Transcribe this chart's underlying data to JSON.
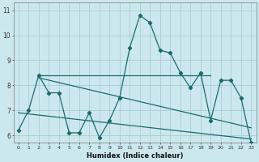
{
  "xlabel": "Humidex (Indice chaleur)",
  "ylabel": "",
  "bg_color": "#cce8ee",
  "grid_color": "#aaccd4",
  "line_color": "#1a6b6b",
  "x_ticks": [
    0,
    1,
    2,
    3,
    4,
    5,
    6,
    7,
    8,
    9,
    10,
    11,
    12,
    13,
    14,
    15,
    16,
    17,
    18,
    19,
    20,
    21,
    22,
    23
  ],
  "ylim": [
    5.7,
    11.3
  ],
  "xlim": [
    -0.5,
    23.5
  ],
  "yticks": [
    6,
    7,
    8,
    9,
    10,
    11
  ],
  "series1_x": [
    0,
    1,
    2,
    3,
    4,
    5,
    6,
    7,
    8,
    9,
    10,
    11,
    12,
    13,
    14,
    15,
    16,
    17,
    18,
    19,
    20,
    21,
    22,
    23
  ],
  "series1_y": [
    6.2,
    7.0,
    8.4,
    7.7,
    7.7,
    6.1,
    6.1,
    6.9,
    5.9,
    6.6,
    7.5,
    9.5,
    10.8,
    10.5,
    9.4,
    9.3,
    8.5,
    7.9,
    8.5,
    6.6,
    8.2,
    8.2,
    7.5,
    5.7
  ],
  "series2_x": [
    2,
    19
  ],
  "series2_y": [
    8.4,
    8.4
  ],
  "series3_x": [
    2,
    23
  ],
  "series3_y": [
    8.3,
    6.3
  ],
  "series4_x": [
    0,
    23
  ],
  "series4_y": [
    6.9,
    5.85
  ]
}
